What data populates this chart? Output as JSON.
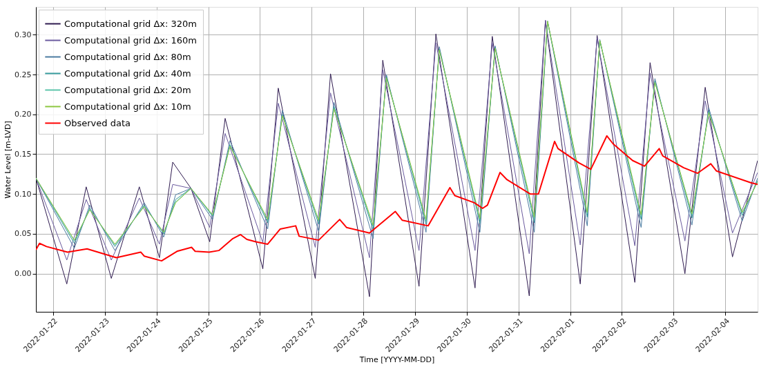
{
  "chart_data": {
    "type": "line",
    "xlabel": "Time [YYYY-MM-DD]",
    "ylabel": "Water Level [m-LVD]",
    "xlim": [
      "2022-01-21T16:00",
      "2022-02-04T15:00"
    ],
    "ylim": [
      -0.048,
      0.335
    ],
    "xticks": [
      "2022-01-22",
      "2022-01-23",
      "2022-01-24",
      "2022-01-25",
      "2022-01-26",
      "2022-01-27",
      "2022-01-28",
      "2022-01-29",
      "2022-01-30",
      "2022-01-31",
      "2022-02-01",
      "2022-02-02",
      "2022-02-03",
      "2022-02-04"
    ],
    "yticks": [
      {
        "value": 0,
        "label": "0.00"
      },
      {
        "value": 0.05,
        "label": "0.05"
      },
      {
        "value": 0.1,
        "label": "0.10"
      },
      {
        "value": 0.15,
        "label": "0.15"
      },
      {
        "value": 0.2,
        "label": "0.20"
      },
      {
        "value": 0.25,
        "label": "0.25"
      },
      {
        "value": 0.3,
        "label": "0.30"
      }
    ],
    "grid": true,
    "legend": "top left",
    "line_style": "solid",
    "marker": "none",
    "series": [
      {
        "name": "Computational grid Δx: 320m",
        "color": "#2e1a4f",
        "x": [
          "2022-01-21T16:00",
          "2022-01-22T06:20",
          "2022-01-22T15:20",
          "2022-01-23T03:00",
          "2022-01-23T16:00",
          "2022-01-24T01:20",
          "2022-01-24T07:30",
          "2022-01-24T16:00",
          "2022-01-25T00:40",
          "2022-01-25T07:50",
          "2022-01-26T01:20",
          "2022-01-26T08:30",
          "2022-01-27T01:40",
          "2022-01-27T08:45",
          "2022-01-28T02:50",
          "2022-01-28T09:00",
          "2022-01-29T01:50",
          "2022-01-29T09:40",
          "2022-01-30T03:50",
          "2022-01-30T11:50",
          "2022-01-31T05:00",
          "2022-01-31T12:30",
          "2022-02-01T04:40",
          "2022-02-01T12:30",
          "2022-02-02T06:00",
          "2022-02-02T13:05",
          "2022-02-03T05:15",
          "2022-02-03T14:40",
          "2022-02-04T03:20",
          "2022-02-04T15:00"
        ],
        "values": [
          0.12,
          -0.013,
          0.109,
          -0.006,
          0.109,
          0.02,
          0.14,
          0.107,
          0.04,
          0.195,
          0.006,
          0.233,
          -0.006,
          0.251,
          -0.029,
          0.268,
          -0.016,
          0.301,
          -0.018,
          0.298,
          -0.028,
          0.318,
          -0.013,
          0.299,
          -0.011,
          0.265,
          0.0,
          0.234,
          0.021,
          0.142
        ]
      },
      {
        "name": "Computational grid Δx: 160m",
        "color": "#6a5a9e",
        "x": [
          "2022-01-21T16:00",
          "2022-01-22T06:20",
          "2022-01-22T15:20",
          "2022-01-23T03:00",
          "2022-01-23T16:00",
          "2022-01-24T01:20",
          "2022-01-24T07:30",
          "2022-01-24T16:00",
          "2022-01-25T00:40",
          "2022-01-25T07:50",
          "2022-01-26T01:20",
          "2022-01-26T08:30",
          "2022-01-27T01:40",
          "2022-01-27T08:45",
          "2022-01-28T02:50",
          "2022-01-28T09:00",
          "2022-01-29T01:50",
          "2022-01-29T09:40",
          "2022-01-30T03:50",
          "2022-01-30T11:50",
          "2022-01-31T05:00",
          "2022-01-31T12:30",
          "2022-02-01T04:40",
          "2022-02-01T12:30",
          "2022-02-02T06:00",
          "2022-02-02T13:05",
          "2022-02-03T05:15",
          "2022-02-03T14:40",
          "2022-02-04T03:20",
          "2022-02-04T15:00"
        ],
        "values": [
          0.12,
          0.017,
          0.093,
          0.017,
          0.095,
          0.037,
          0.112,
          0.107,
          0.058,
          0.176,
          0.039,
          0.214,
          0.033,
          0.227,
          0.02,
          0.256,
          0.029,
          0.29,
          0.029,
          0.29,
          0.025,
          0.318,
          0.036,
          0.296,
          0.035,
          0.252,
          0.041,
          0.217,
          0.051,
          0.127
        ]
      },
      {
        "name": "Computational grid Δx: 80m",
        "color": "#4a7aa0",
        "x": [
          "2022-01-21T16:00",
          "2022-01-22T09:50",
          "2022-01-22T17:00",
          "2022-01-23T04:40",
          "2022-01-23T18:15",
          "2022-01-24T03:20",
          "2022-01-24T08:50",
          "2022-01-24T16:00",
          "2022-01-25T02:00",
          "2022-01-25T10:05",
          "2022-01-26T03:35",
          "2022-01-26T10:25",
          "2022-01-27T03:15",
          "2022-01-27T10:20",
          "2022-01-28T04:30",
          "2022-01-28T10:40",
          "2022-01-29T05:05",
          "2022-01-29T11:15",
          "2022-01-30T06:05",
          "2022-01-30T13:10",
          "2022-01-31T07:20",
          "2022-01-31T13:30",
          "2022-02-01T07:55",
          "2022-02-01T13:45",
          "2022-02-02T08:55",
          "2022-02-02T15:20",
          "2022-02-03T08:30",
          "2022-02-03T16:20",
          "2022-02-04T07:50",
          "2022-02-04T15:00"
        ],
        "values": [
          0.12,
          0.032,
          0.086,
          0.029,
          0.089,
          0.046,
          0.099,
          0.107,
          0.068,
          0.167,
          0.056,
          0.205,
          0.053,
          0.215,
          0.044,
          0.25,
          0.052,
          0.285,
          0.052,
          0.286,
          0.052,
          0.317,
          0.06,
          0.294,
          0.058,
          0.245,
          0.061,
          0.208,
          0.066,
          0.12
        ]
      },
      {
        "name": "Computational grid Δx: 40m",
        "color": "#35999a",
        "x": [
          "2022-01-21T16:00",
          "2022-01-22T09:50",
          "2022-01-22T17:00",
          "2022-01-23T04:40",
          "2022-01-23T18:15",
          "2022-01-24T03:20",
          "2022-01-24T08:50",
          "2022-01-24T16:00",
          "2022-01-25T02:00",
          "2022-01-25T10:05",
          "2022-01-26T03:35",
          "2022-01-26T10:25",
          "2022-01-27T03:15",
          "2022-01-27T10:20",
          "2022-01-28T04:30",
          "2022-01-28T10:40",
          "2022-01-29T05:05",
          "2022-01-29T11:15",
          "2022-01-30T06:05",
          "2022-01-30T13:10",
          "2022-01-31T07:20",
          "2022-01-31T13:30",
          "2022-02-01T07:55",
          "2022-02-01T13:45",
          "2022-02-02T08:55",
          "2022-02-02T15:20",
          "2022-02-03T08:30",
          "2022-02-03T16:20",
          "2022-02-04T07:50",
          "2022-02-04T15:00"
        ],
        "values": [
          0.12,
          0.038,
          0.082,
          0.034,
          0.086,
          0.05,
          0.093,
          0.107,
          0.072,
          0.162,
          0.064,
          0.2,
          0.062,
          0.21,
          0.055,
          0.248,
          0.062,
          0.282,
          0.063,
          0.284,
          0.064,
          0.317,
          0.071,
          0.293,
          0.068,
          0.242,
          0.07,
          0.204,
          0.073,
          0.117
        ]
      },
      {
        "name": "Computational grid Δx: 20m",
        "color": "#5cc4aa",
        "x": [
          "2022-01-21T16:00",
          "2022-01-22T09:50",
          "2022-01-22T17:00",
          "2022-01-23T04:40",
          "2022-01-23T18:15",
          "2022-01-24T03:20",
          "2022-01-24T08:50",
          "2022-01-24T16:00",
          "2022-01-25T02:00",
          "2022-01-25T10:05",
          "2022-01-26T03:35",
          "2022-01-26T10:25",
          "2022-01-27T03:15",
          "2022-01-27T10:20",
          "2022-01-28T04:30",
          "2022-01-28T10:40",
          "2022-01-29T05:05",
          "2022-01-29T11:15",
          "2022-01-30T06:05",
          "2022-01-30T13:10",
          "2022-01-31T07:20",
          "2022-01-31T13:30",
          "2022-02-01T07:55",
          "2022-02-01T13:45",
          "2022-02-02T08:55",
          "2022-02-02T15:20",
          "2022-02-03T08:30",
          "2022-02-03T16:20",
          "2022-02-04T07:50",
          "2022-02-04T15:00"
        ],
        "values": [
          0.12,
          0.041,
          0.081,
          0.036,
          0.085,
          0.051,
          0.09,
          0.107,
          0.073,
          0.161,
          0.067,
          0.199,
          0.066,
          0.208,
          0.059,
          0.246,
          0.066,
          0.281,
          0.067,
          0.283,
          0.069,
          0.317,
          0.075,
          0.293,
          0.072,
          0.241,
          0.074,
          0.203,
          0.076,
          0.116
        ]
      },
      {
        "name": "Computational grid Δx: 10m",
        "color": "#8cc63f",
        "x": [
          "2022-01-21T16:00",
          "2022-01-22T09:50",
          "2022-01-22T17:00",
          "2022-01-23T04:40",
          "2022-01-23T18:15",
          "2022-01-24T03:20",
          "2022-01-24T08:50",
          "2022-01-24T16:00",
          "2022-01-25T02:00",
          "2022-01-25T10:05",
          "2022-01-26T03:35",
          "2022-01-26T10:25",
          "2022-01-27T03:15",
          "2022-01-27T10:20",
          "2022-01-28T04:30",
          "2022-01-28T10:40",
          "2022-01-29T05:05",
          "2022-01-29T11:15",
          "2022-01-30T06:05",
          "2022-01-30T13:10",
          "2022-01-31T07:20",
          "2022-01-31T13:30",
          "2022-02-01T07:55",
          "2022-02-01T13:45",
          "2022-02-02T08:55",
          "2022-02-02T15:20",
          "2022-02-03T08:30",
          "2022-02-03T16:20",
          "2022-02-04T07:50",
          "2022-02-04T15:00"
        ],
        "values": [
          0.12,
          0.042,
          0.08,
          0.037,
          0.084,
          0.052,
          0.089,
          0.107,
          0.074,
          0.16,
          0.068,
          0.198,
          0.067,
          0.207,
          0.061,
          0.246,
          0.068,
          0.281,
          0.069,
          0.283,
          0.071,
          0.317,
          0.077,
          0.293,
          0.074,
          0.24,
          0.075,
          0.202,
          0.077,
          0.115
        ]
      },
      {
        "name": "Observed data",
        "color": "#ff0000",
        "x": [
          "2022-01-21T16:00",
          "2022-01-21T17:40",
          "2022-01-21T20:55",
          "2022-01-22T06:40",
          "2022-01-22T15:45",
          "2022-01-23T05:20",
          "2022-01-23T16:40",
          "2022-01-23T18:15",
          "2022-01-24T02:20",
          "2022-01-24T09:30",
          "2022-01-24T16:15",
          "2022-01-24T17:55",
          "2022-01-25T00:25",
          "2022-01-25T04:55",
          "2022-01-25T11:25",
          "2022-01-25T14:55",
          "2022-01-25T17:55",
          "2022-01-25T22:05",
          "2022-01-26T03:35",
          "2022-01-26T09:25",
          "2022-01-26T16:35",
          "2022-01-26T18:10",
          "2022-01-27T03:15",
          "2022-01-27T13:00",
          "2022-01-27T16:10",
          "2022-01-28T02:50",
          "2022-01-28T14:50",
          "2022-01-28T18:05",
          "2022-01-29T06:05",
          "2022-01-29T16:10",
          "2022-01-29T18:25",
          "2022-01-30T03:30",
          "2022-01-30T07:20",
          "2022-01-30T09:35",
          "2022-01-30T15:25",
          "2022-01-30T18:40",
          "2022-01-31T05:25",
          "2022-01-31T09:15",
          "2022-01-31T16:45",
          "2022-01-31T18:20",
          "2022-02-01T04:05",
          "2022-02-01T09:35",
          "2022-02-01T17:00",
          "2022-02-01T19:55",
          "2022-02-02T05:00",
          "2022-02-02T10:30",
          "2022-02-02T17:20",
          "2022-02-02T18:55",
          "2022-02-03T04:40",
          "2022-02-03T11:05",
          "2022-02-03T17:15",
          "2022-02-03T19:50",
          "2022-02-04T12:00",
          "2022-02-04T15:00"
        ],
        "values": [
          0.03,
          0.038,
          0.034,
          0.027,
          0.031,
          0.02,
          0.027,
          0.022,
          0.016,
          0.028,
          0.033,
          0.028,
          0.027,
          0.029,
          0.044,
          0.049,
          0.043,
          0.04,
          0.037,
          0.056,
          0.06,
          0.047,
          0.042,
          0.068,
          0.058,
          0.051,
          0.078,
          0.067,
          0.06,
          0.108,
          0.098,
          0.089,
          0.082,
          0.086,
          0.127,
          0.118,
          0.1,
          0.1,
          0.166,
          0.157,
          0.139,
          0.131,
          0.173,
          0.163,
          0.142,
          0.135,
          0.157,
          0.148,
          0.133,
          0.126,
          0.138,
          0.129,
          0.114,
          0.112
        ]
      }
    ]
  }
}
